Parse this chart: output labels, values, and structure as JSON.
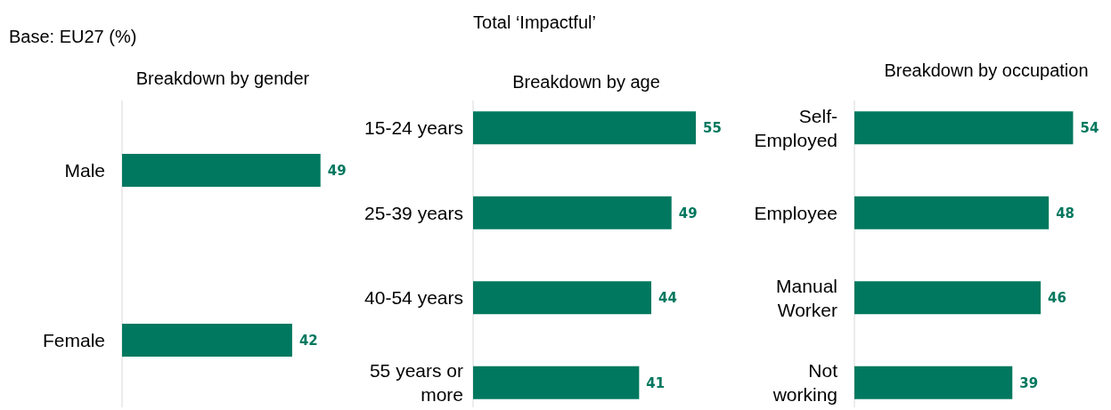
{
  "chart_data": [
    {
      "type": "bar",
      "orientation": "horizontal",
      "title": "Breakdown by gender",
      "annotations": [
        "Base: EU27 (%)"
      ],
      "categories": [
        "Male",
        "Female"
      ],
      "values": [
        49,
        42
      ],
      "color": "#00785f",
      "data_labels": true
    },
    {
      "type": "bar",
      "orientation": "horizontal",
      "title": "Total ‘Impactful’",
      "subtitle": "Breakdown by age",
      "categories": [
        "15-24 years",
        "25-39 years",
        "40-54 years",
        "55 years or more"
      ],
      "values": [
        55,
        49,
        44,
        41
      ],
      "color": "#00785f",
      "data_labels": true
    },
    {
      "type": "bar",
      "orientation": "horizontal",
      "title": "Breakdown by occupation",
      "categories": [
        "Self-Employed",
        "Employee",
        "Manual Worker",
        "Not working"
      ],
      "values": [
        54,
        48,
        46,
        39
      ],
      "color": "#00785f",
      "data_labels": true
    }
  ]
}
